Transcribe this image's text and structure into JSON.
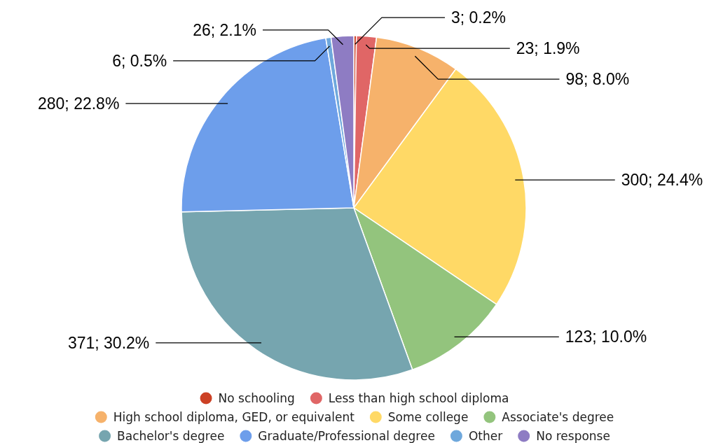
{
  "chart_data": {
    "type": "pie",
    "categories": [
      "No schooling",
      "Less than high school diploma",
      "High school diploma, GED, or equivalent",
      "Some college",
      "Associate's degree",
      "Bachelor's degree",
      "Graduate/Professional degree",
      "Other",
      "No response"
    ],
    "values": [
      3,
      23,
      98,
      300,
      123,
      371,
      280,
      6,
      26
    ],
    "colors": [
      "#cc4125",
      "#e06666",
      "#f6b26b",
      "#ffd966",
      "#93c47d",
      "#76a5af",
      "#6d9eeb",
      "#6fa8dc",
      "#8e7cc3"
    ],
    "value_labels": [
      "3; 0.2%",
      "23; 1.9%",
      "98; 8.0%",
      "300; 24.4%",
      "123; 10.0%",
      "371; 30.2%",
      "280; 22.8%",
      "6; 0.5%",
      "26; 2.1%"
    ],
    "legend": "bottom"
  }
}
